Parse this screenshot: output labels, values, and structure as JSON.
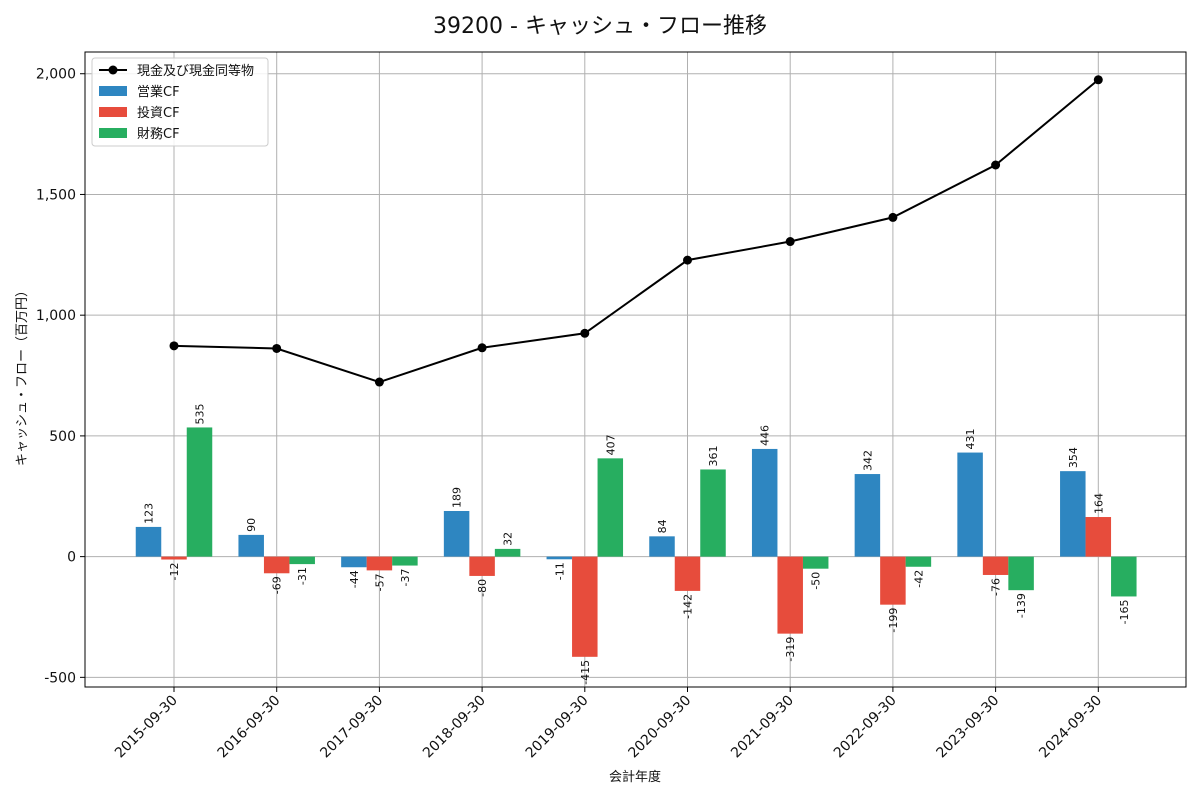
{
  "chart_data": {
    "type": "bar",
    "title": "39200 - キャッシュ・フロー推移",
    "xlabel": "会計年度",
    "ylabel": "キャッシュ・フロー（百万円）",
    "ylim": [
      -540,
      2090
    ],
    "yticks": [
      -500,
      0,
      500,
      1000,
      1500,
      2000
    ],
    "ytick_labels": [
      "-500",
      "0",
      "500",
      "1,000",
      "1,500",
      "2,000"
    ],
    "grid": true,
    "legend_position": "top-left",
    "categories": [
      "2015-09-30",
      "2016-09-30",
      "2017-09-30",
      "2018-09-30",
      "2019-09-30",
      "2020-09-30",
      "2021-09-30",
      "2022-09-30",
      "2023-09-30",
      "2024-09-30"
    ],
    "series": [
      {
        "name": "営業CF",
        "kind": "bar",
        "color": "#2e86c1",
        "values": [
          123,
          90,
          -44,
          189,
          -11,
          84,
          446,
          342,
          431,
          354
        ]
      },
      {
        "name": "投資CF",
        "kind": "bar",
        "color": "#e74c3c",
        "values": [
          -12,
          -69,
          -57,
          -80,
          -415,
          -142,
          -319,
          -199,
          -76,
          164
        ]
      },
      {
        "name": "財務CF",
        "kind": "bar",
        "color": "#27ae60",
        "values": [
          535,
          -31,
          -37,
          32,
          407,
          361,
          -50,
          -42,
          -139,
          -165
        ]
      },
      {
        "name": "現金及び現金同等物",
        "kind": "line",
        "color": "#000000",
        "values": [
          873,
          862,
          723,
          865,
          925,
          1228,
          1305,
          1405,
          1622,
          1975
        ]
      }
    ],
    "legend_order": [
      "現金及び現金同等物",
      "営業CF",
      "投資CF",
      "財務CF"
    ]
  }
}
